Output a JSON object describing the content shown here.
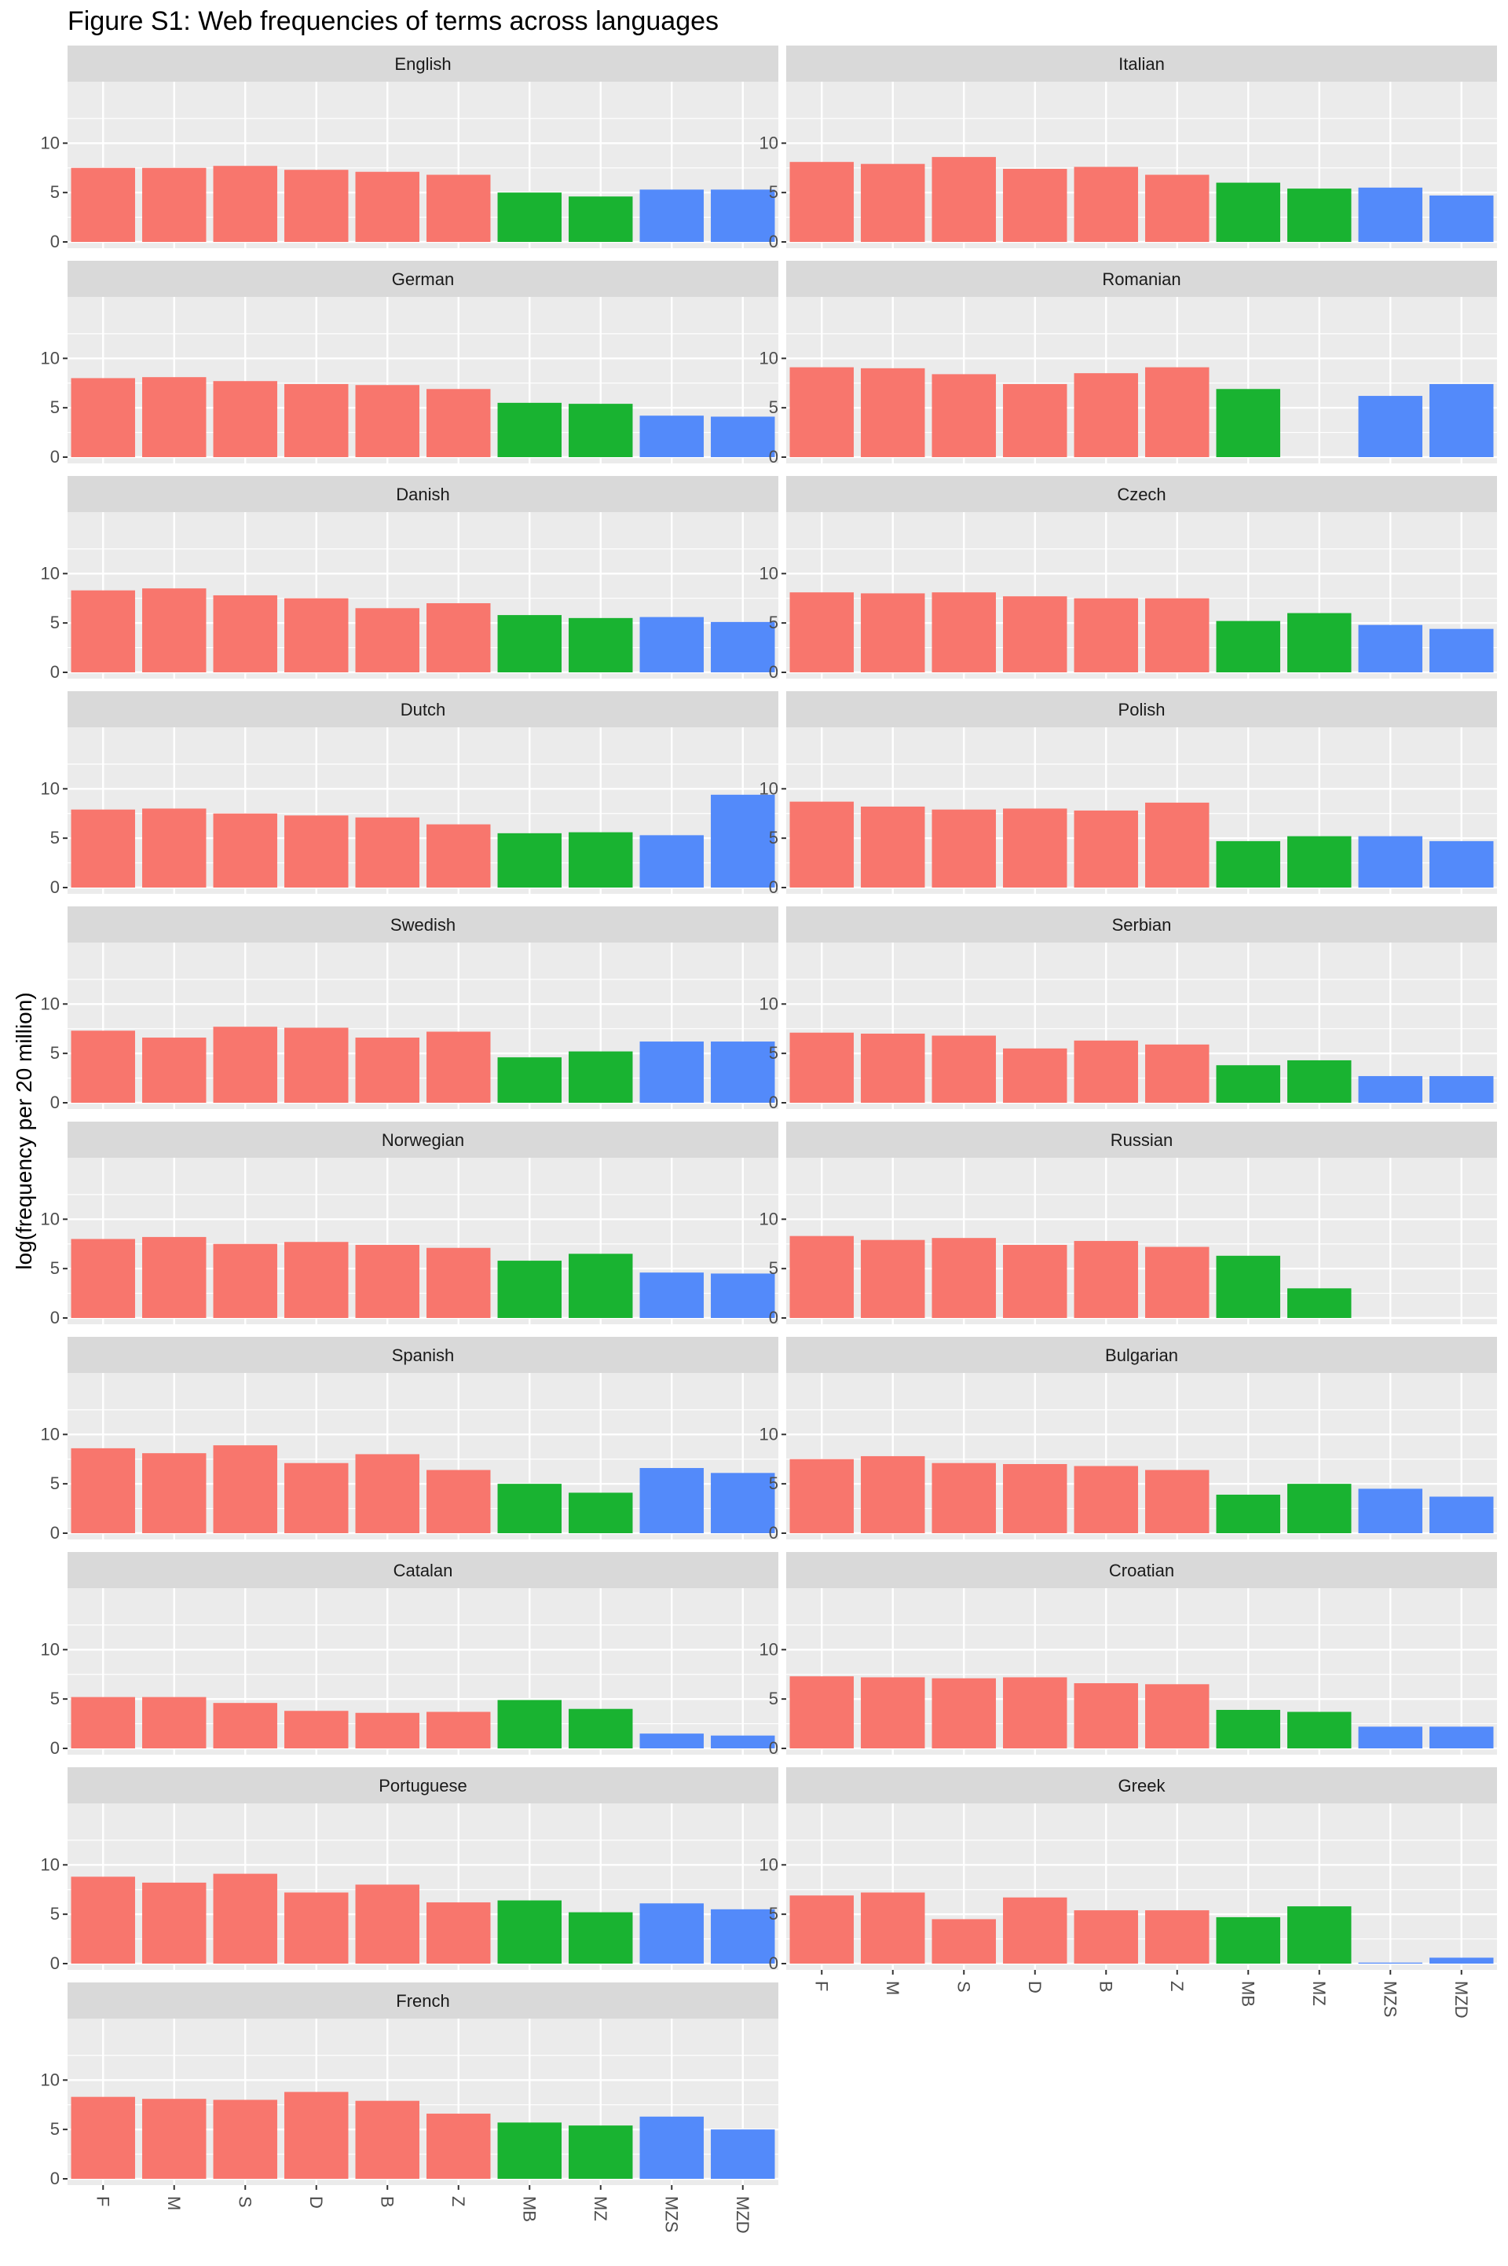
{
  "chart_data": {
    "type": "bar",
    "title": "Figure S1: Web frequencies of terms across languages",
    "ylabel": "log(frequency per 20 million)",
    "xlabel": "",
    "ylim": [
      0,
      14
    ],
    "yticks": [
      0,
      5,
      10
    ],
    "grid": true,
    "legend": "none",
    "categories": [
      "F",
      "M",
      "S",
      "D",
      "B",
      "Z",
      "MB",
      "MZ",
      "MZS",
      "MZD"
    ],
    "colors": {
      "red": "#F8766D",
      "green": "#19B331",
      "blue": "#538AFA",
      "panel_bg": "#EBEBEB",
      "strip_bg": "#D9D9D9",
      "grid": "#FFFFFF"
    },
    "bar_colors": [
      "red",
      "red",
      "red",
      "red",
      "red",
      "red",
      "green",
      "green",
      "blue",
      "blue"
    ],
    "facets": [
      {
        "name": "English",
        "values": [
          7.5,
          7.5,
          7.7,
          7.3,
          7.1,
          6.8,
          5.0,
          4.6,
          5.3,
          5.3
        ]
      },
      {
        "name": "Italian",
        "values": [
          8.1,
          7.9,
          8.6,
          7.4,
          7.6,
          6.8,
          6.0,
          5.4,
          5.5,
          4.7
        ]
      },
      {
        "name": "German",
        "values": [
          8.0,
          8.1,
          7.7,
          7.4,
          7.3,
          6.9,
          5.5,
          5.4,
          4.2,
          4.1
        ]
      },
      {
        "name": "Romanian",
        "values": [
          9.1,
          9.0,
          8.4,
          7.4,
          8.5,
          9.1,
          6.9,
          null,
          6.2,
          7.4
        ]
      },
      {
        "name": "Danish",
        "values": [
          8.3,
          8.5,
          7.8,
          7.5,
          6.5,
          7.0,
          5.8,
          5.5,
          5.6,
          5.1
        ]
      },
      {
        "name": "Czech",
        "values": [
          8.1,
          8.0,
          8.1,
          7.7,
          7.5,
          7.5,
          5.2,
          6.0,
          4.8,
          4.4
        ]
      },
      {
        "name": "Dutch",
        "values": [
          7.9,
          8.0,
          7.5,
          7.3,
          7.1,
          6.4,
          5.5,
          5.6,
          5.3,
          9.4
        ]
      },
      {
        "name": "Polish",
        "values": [
          8.7,
          8.2,
          7.9,
          8.0,
          7.8,
          8.6,
          4.7,
          5.2,
          5.2,
          4.7
        ]
      },
      {
        "name": "Swedish",
        "values": [
          7.3,
          6.6,
          7.7,
          7.6,
          6.6,
          7.2,
          4.6,
          5.2,
          6.2,
          6.2
        ]
      },
      {
        "name": "Serbian",
        "values": [
          7.1,
          7.0,
          6.8,
          5.5,
          6.3,
          5.9,
          3.8,
          4.3,
          2.7,
          2.7
        ]
      },
      {
        "name": "Norwegian",
        "values": [
          8.0,
          8.2,
          7.5,
          7.7,
          7.4,
          7.1,
          5.8,
          6.5,
          4.6,
          4.5
        ]
      },
      {
        "name": "Russian",
        "values": [
          8.3,
          7.9,
          8.1,
          7.4,
          7.8,
          7.2,
          6.3,
          3.0,
          null,
          null
        ]
      },
      {
        "name": "Spanish",
        "values": [
          8.6,
          8.1,
          8.9,
          7.1,
          8.0,
          6.4,
          5.0,
          4.1,
          6.6,
          6.1
        ]
      },
      {
        "name": "Bulgarian",
        "values": [
          7.5,
          7.8,
          7.1,
          7.0,
          6.8,
          6.4,
          3.9,
          5.0,
          4.5,
          3.7
        ]
      },
      {
        "name": "Catalan",
        "values": [
          5.2,
          5.2,
          4.6,
          3.8,
          3.6,
          3.7,
          4.9,
          4.0,
          1.5,
          1.3
        ]
      },
      {
        "name": "Croatian",
        "values": [
          7.3,
          7.2,
          7.1,
          7.2,
          6.6,
          6.5,
          3.9,
          3.7,
          2.2,
          2.2
        ]
      },
      {
        "name": "Portuguese",
        "values": [
          8.8,
          8.2,
          9.1,
          7.2,
          8.0,
          6.2,
          6.4,
          5.2,
          6.1,
          5.5
        ]
      },
      {
        "name": "Greek",
        "values": [
          6.9,
          7.2,
          4.5,
          6.7,
          5.4,
          5.4,
          4.7,
          5.8,
          0.1,
          0.6
        ]
      },
      {
        "name": "French",
        "values": [
          8.3,
          8.1,
          8.0,
          8.8,
          7.9,
          6.6,
          5.7,
          5.4,
          6.3,
          5.0
        ]
      }
    ]
  }
}
